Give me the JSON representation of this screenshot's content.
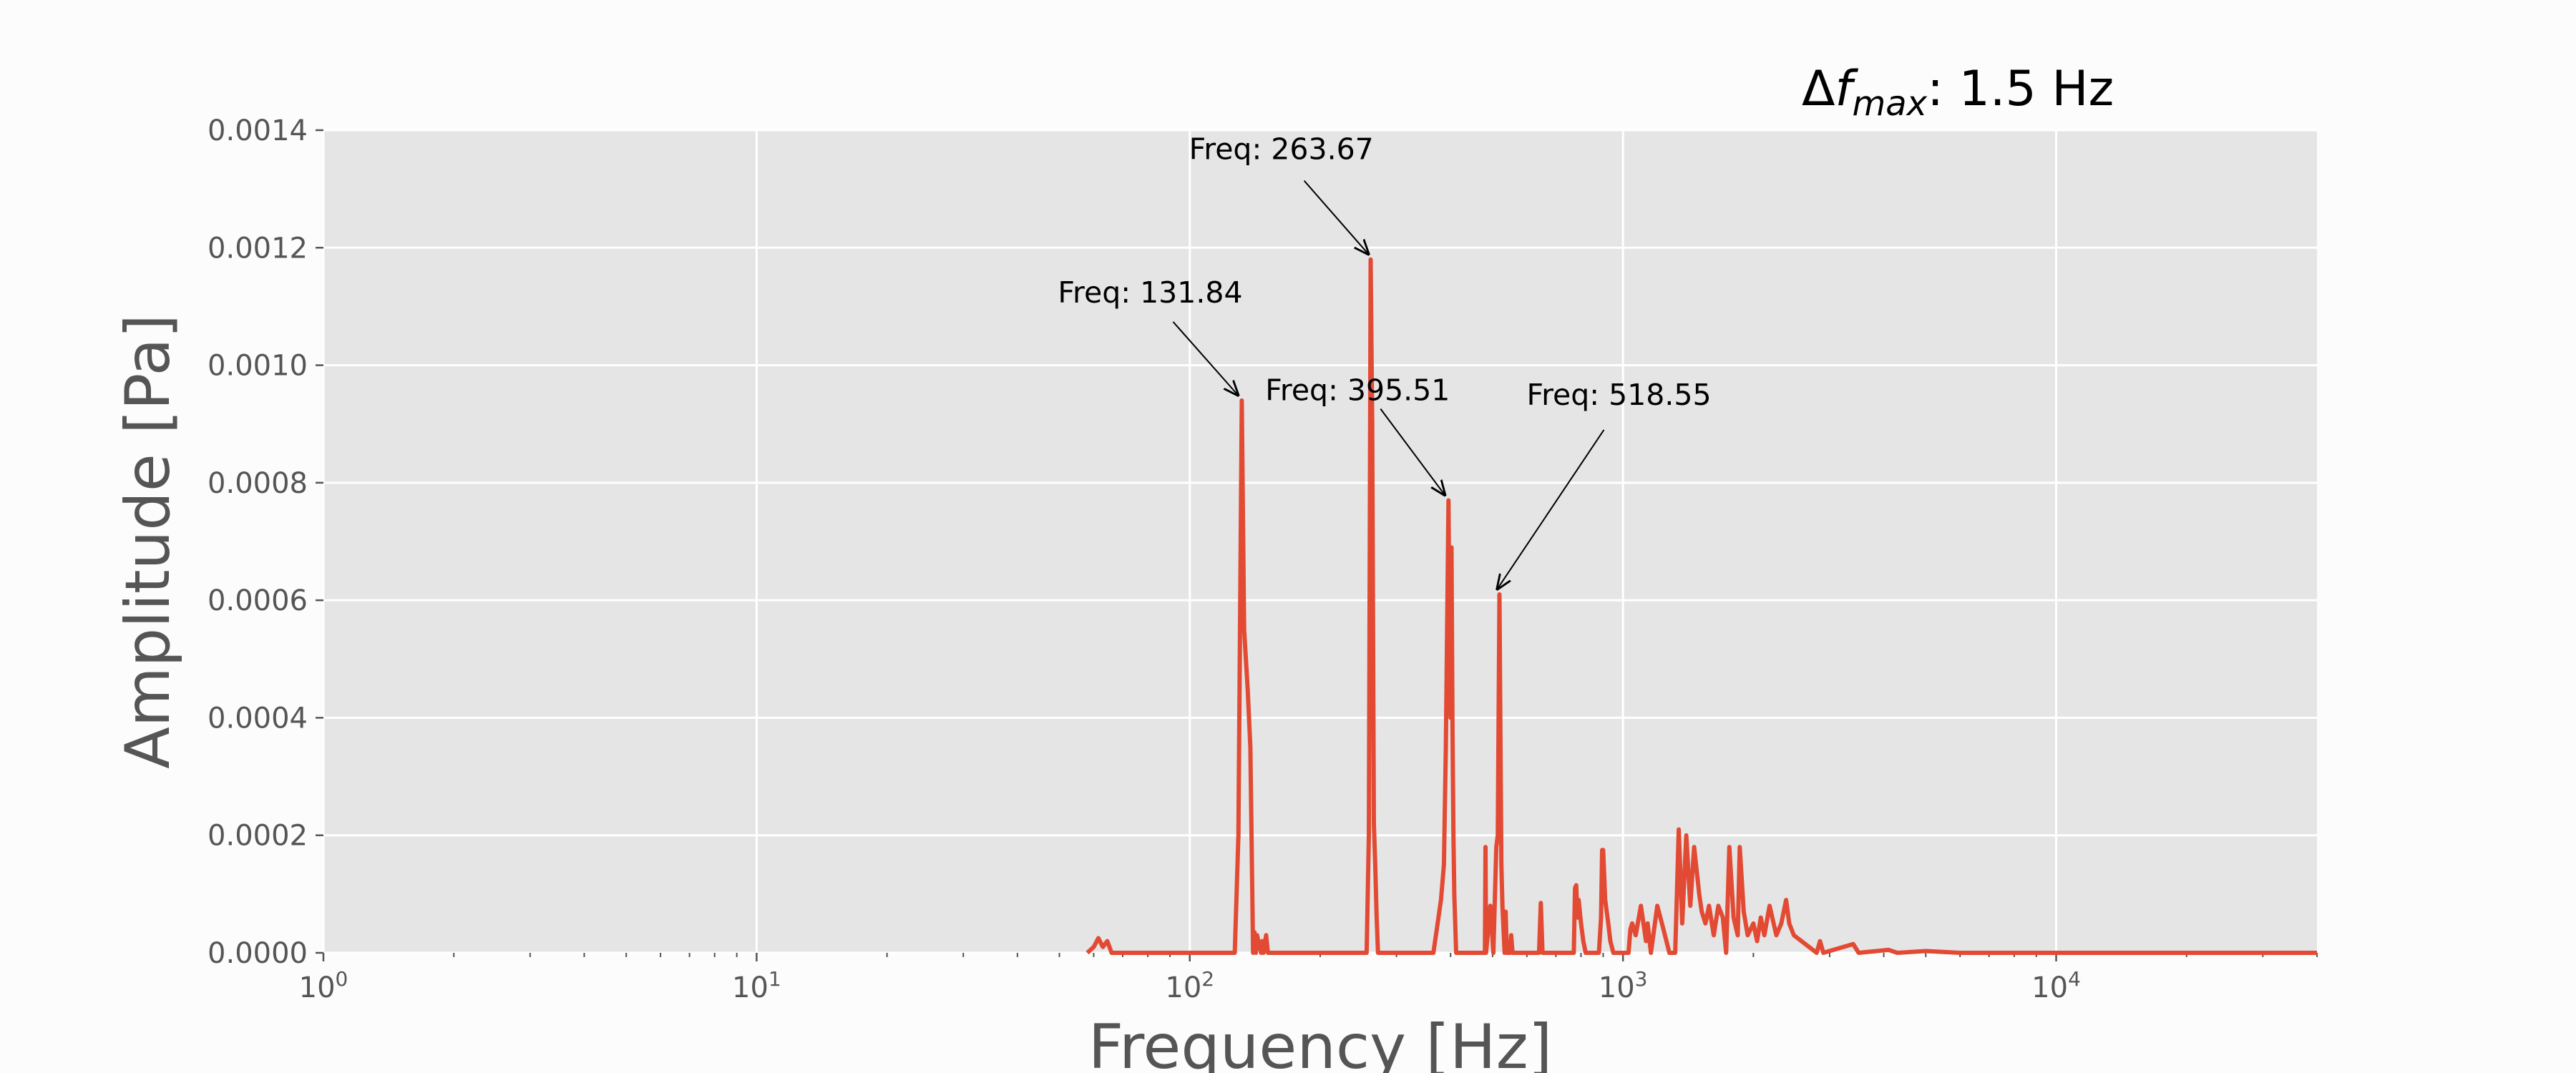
{
  "chart_data": {
    "type": "line",
    "title": "Δf_max: 1.5 Hz",
    "title_parts": {
      "delta": "Δ",
      "f": "f",
      "sub": "max",
      "rest": ": 1.5 Hz"
    },
    "xlabel": "Frequency [Hz]",
    "ylabel": "Amplitude [Pa]",
    "xscale": "log",
    "xlim": [
      1,
      40000
    ],
    "ylim": [
      0,
      0.0014
    ],
    "grid": true,
    "colors": {
      "line": "#e24a33",
      "plot_bg": "#e5e5e5",
      "grid": "#ffffff",
      "figure_bg": "#fcfcfc"
    },
    "yticks": [
      "0.0000",
      "0.0002",
      "0.0004",
      "0.0006",
      "0.0008",
      "0.0010",
      "0.0012",
      "0.0014"
    ],
    "xticks": [
      {
        "base": "10",
        "exp": "0"
      },
      {
        "base": "10",
        "exp": "1"
      },
      {
        "base": "10",
        "exp": "2"
      },
      {
        "base": "10",
        "exp": "3"
      },
      {
        "base": "10",
        "exp": "4"
      }
    ],
    "annotations": [
      {
        "text": "Freq: 131.84",
        "x": 131.84,
        "y": 0.00094
      },
      {
        "text": "Freq: 263.67",
        "x": 263.67,
        "y": 0.00118
      },
      {
        "text": "Freq: 395.51",
        "x": 395.51,
        "y": 0.00077
      },
      {
        "text": "Freq: 518.55",
        "x": 518.55,
        "y": 0.00061
      }
    ],
    "series": [
      {
        "x": [
          58,
          60,
          61.5,
          63,
          64.5,
          66,
          127,
          129.5,
          131.84,
          133.5,
          136,
          138,
          140,
          141,
          142,
          143,
          146,
          147,
          148,
          150,
          151.5,
          153,
          256,
          259,
          261.5,
          263.67,
          266,
          268,
          270,
          272,
          276,
          365,
          380,
          386,
          390,
          395.51,
          398,
          400,
          402,
          404,
          406,
          408,
          412,
          480,
          481.5,
          483,
          494,
          502,
          510,
          514,
          518.55,
          521,
          524,
          527,
          533,
          536,
          539,
          548,
          552,
          556,
          640,
          646,
          652,
          770,
          775,
          780,
          785,
          790,
          800,
          810,
          820,
          880,
          885,
          890,
          895,
          900,
          910,
          925,
          935,
          950,
          1000,
          1030,
          1040,
          1050,
          1070,
          1100,
          1130,
          1140,
          1160,
          1200,
          1240,
          1280,
          1320,
          1345,
          1370,
          1400,
          1430,
          1460,
          1500,
          1520,
          1550,
          1580,
          1620,
          1660,
          1700,
          1730,
          1760,
          1800,
          1840,
          1860,
          1900,
          1940,
          2000,
          2040,
          2080,
          2120,
          2180,
          2260,
          2320,
          2380,
          2420,
          2480,
          2800,
          2850,
          2900,
          3400,
          3500,
          4100,
          4300,
          5000,
          6000,
          8000,
          10000,
          15000,
          20000,
          30000,
          40000
        ],
        "y": [
          0,
          1e-05,
          2.5e-05,
          1e-05,
          2e-05,
          0,
          0,
          0.0002,
          0.00094,
          0.00055,
          0.00045,
          0.00035,
          0,
          3.5e-05,
          0,
          3e-05,
          0,
          2e-05,
          0,
          3e-05,
          0,
          0,
          0,
          0.0002,
          0.00118,
          0.0009,
          0.00022,
          0.00015,
          6e-05,
          0,
          0,
          0,
          9e-05,
          0.00015,
          0.00035,
          0.00077,
          0.0005,
          0.0004,
          0.00069,
          0.00038,
          0.0002,
          0.0001,
          0,
          0,
          0.00018,
          0,
          8e-05,
          0,
          0.00018,
          0.0002,
          0.00061,
          0.0004,
          0.00015,
          8e-05,
          0,
          7e-05,
          0,
          0,
          3e-05,
          0,
          0,
          8.5e-05,
          0,
          0,
          0.00011,
          0.000115,
          6e-05,
          9e-05,
          5e-05,
          2e-05,
          0,
          0,
          3e-05,
          6e-05,
          0.000175,
          0.000175,
          9e-05,
          5e-05,
          2e-05,
          0,
          0,
          0,
          4e-05,
          5e-05,
          3e-05,
          8e-05,
          2e-05,
          5e-05,
          0,
          8e-05,
          4e-05,
          0,
          0,
          0.00021,
          5e-05,
          0.0002,
          8e-05,
          0.00018,
          0.0001,
          7e-05,
          5e-05,
          8e-05,
          3e-05,
          8e-05,
          6e-05,
          0,
          0.00018,
          6e-05,
          3e-05,
          0.00018,
          7e-05,
          3e-05,
          5e-05,
          2e-05,
          6e-05,
          3e-05,
          8e-05,
          3e-05,
          5e-05,
          9e-05,
          5e-05,
          3e-05,
          0,
          2e-05,
          0,
          1.5e-05,
          0,
          5e-06,
          0,
          3e-06,
          0,
          0,
          0,
          0,
          0,
          0,
          0
        ]
      }
    ]
  }
}
